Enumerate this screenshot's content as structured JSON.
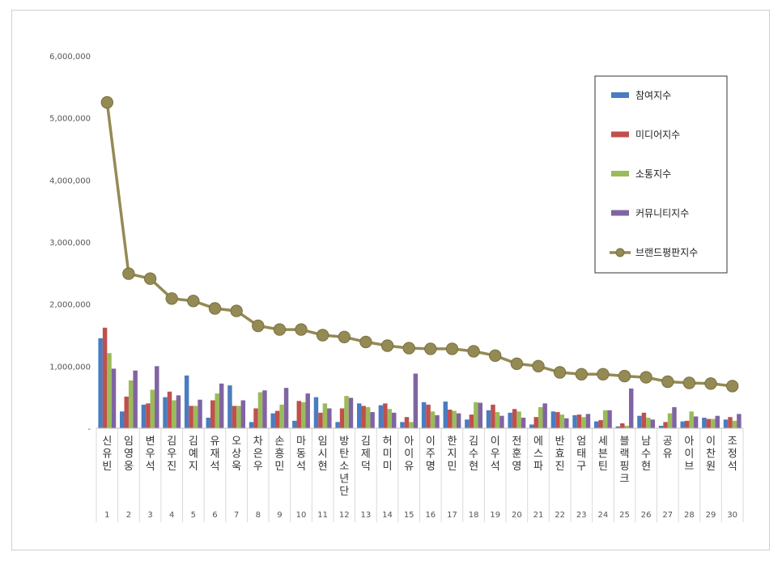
{
  "chart_data": {
    "type": "bar",
    "categories": [
      "신유빈",
      "임영웅",
      "변우석",
      "김우진",
      "김예지",
      "유재석",
      "오상욱",
      "차은우",
      "손흥민",
      "마동석",
      "임시현",
      "방탄소년단",
      "김제덕",
      "허미미",
      "아이유",
      "이주명",
      "한지민",
      "김수현",
      "이우석",
      "전훈영",
      "에스파",
      "반효진",
      "엄태구",
      "세븐틴",
      "블랙핑크",
      "남수현",
      "공유",
      "아이브",
      "이찬원",
      "조정석"
    ],
    "ranks": [
      "1",
      "2",
      "3",
      "4",
      "5",
      "6",
      "7",
      "8",
      "9",
      "10",
      "11",
      "12",
      "13",
      "14",
      "15",
      "16",
      "17",
      "18",
      "19",
      "20",
      "21",
      "22",
      "23",
      "24",
      "25",
      "26",
      "27",
      "28",
      "29",
      "30"
    ],
    "ylim": [
      0,
      6000000
    ],
    "yticks": [
      0,
      1000000,
      2000000,
      3000000,
      4000000,
      5000000,
      6000000
    ],
    "ytick_labels": [
      "-",
      "1,000,000",
      "2,000,000",
      "3,000,000",
      "4,000,000",
      "5,000,000",
      "6,000,000"
    ],
    "legend_position": "top-right",
    "series": [
      {
        "name": "참여지수",
        "kind": "bar",
        "color": "#4a7cc0",
        "values": [
          1450000,
          270000,
          380000,
          500000,
          850000,
          170000,
          690000,
          100000,
          240000,
          120000,
          500000,
          100000,
          400000,
          370000,
          100000,
          420000,
          430000,
          140000,
          290000,
          250000,
          60000,
          270000,
          210000,
          110000,
          30000,
          200000,
          40000,
          110000,
          170000,
          140000
        ]
      },
      {
        "name": "미디어지수",
        "kind": "bar",
        "color": "#c0504d",
        "values": [
          1620000,
          510000,
          400000,
          590000,
          360000,
          450000,
          360000,
          320000,
          280000,
          440000,
          250000,
          320000,
          360000,
          400000,
          180000,
          380000,
          300000,
          220000,
          380000,
          310000,
          180000,
          260000,
          220000,
          130000,
          80000,
          250000,
          100000,
          120000,
          150000,
          180000
        ]
      },
      {
        "name": "소통지수",
        "kind": "bar",
        "color": "#9bbb59",
        "values": [
          1210000,
          770000,
          620000,
          450000,
          360000,
          560000,
          360000,
          580000,
          380000,
          420000,
          400000,
          520000,
          340000,
          310000,
          100000,
          270000,
          280000,
          420000,
          260000,
          270000,
          340000,
          220000,
          180000,
          290000,
          40000,
          170000,
          240000,
          270000,
          150000,
          120000
        ]
      },
      {
        "name": "커뮤니티지수",
        "kind": "bar",
        "color": "#8064a2",
        "values": [
          960000,
          930000,
          1000000,
          530000,
          460000,
          720000,
          450000,
          610000,
          650000,
          560000,
          320000,
          490000,
          260000,
          250000,
          880000,
          210000,
          240000,
          410000,
          200000,
          170000,
          400000,
          160000,
          230000,
          290000,
          640000,
          140000,
          340000,
          190000,
          200000,
          230000
        ]
      },
      {
        "name": "브랜드평판지수",
        "kind": "line",
        "color": "#948a54",
        "values": [
          5250000,
          2490000,
          2410000,
          2090000,
          2050000,
          1930000,
          1890000,
          1650000,
          1590000,
          1590000,
          1500000,
          1470000,
          1390000,
          1330000,
          1290000,
          1280000,
          1280000,
          1240000,
          1170000,
          1040000,
          1000000,
          900000,
          870000,
          870000,
          840000,
          820000,
          750000,
          730000,
          720000,
          680000
        ]
      }
    ]
  }
}
